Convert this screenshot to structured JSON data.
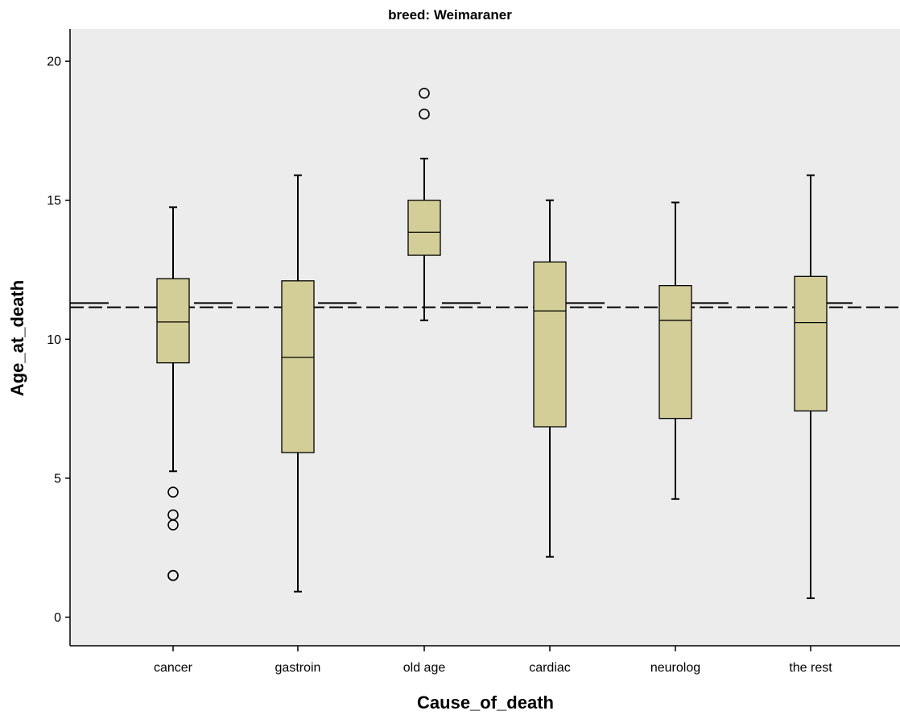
{
  "chart_data": {
    "type": "boxplot",
    "title": "breed: Weimaraner",
    "xlabel": "Cause_of_death",
    "ylabel": "Age_at_death",
    "ylim": [
      -1.0,
      21.0
    ],
    "yticks": [
      0,
      5,
      10,
      15,
      20
    ],
    "categories": [
      "cancer",
      "gastroin",
      "old age",
      "cardiac",
      "neurolog",
      "the rest"
    ],
    "boxes": [
      {
        "category": "cancer",
        "whisker_low": 5.25,
        "q1": 9.15,
        "median": 10.62,
        "q3": 12.18,
        "whisker_high": 14.75,
        "outliers": [
          4.5,
          3.68,
          3.32,
          1.5,
          1.5
        ]
      },
      {
        "category": "gastroin",
        "whisker_low": 0.92,
        "q1": 5.92,
        "median": 9.35,
        "q3": 12.1,
        "whisker_high": 15.9,
        "outliers": []
      },
      {
        "category": "old age",
        "whisker_low": 10.68,
        "q1": 13.02,
        "median": 13.85,
        "q3": 15.0,
        "whisker_high": 16.5,
        "outliers": [
          18.85,
          18.1
        ]
      },
      {
        "category": "cardiac",
        "whisker_low": 2.17,
        "q1": 6.85,
        "median": 11.02,
        "q3": 12.78,
        "whisker_high": 15.0,
        "outliers": []
      },
      {
        "category": "neurolog",
        "whisker_low": 4.25,
        "q1": 7.15,
        "median": 10.68,
        "q3": 11.93,
        "whisker_high": 14.92,
        "outliers": []
      },
      {
        "category": "the rest",
        "whisker_low": 0.68,
        "q1": 7.42,
        "median": 10.6,
        "q3": 12.26,
        "whisker_high": 15.9,
        "outliers": []
      }
    ],
    "reference_lines": [
      {
        "style": "long-dash",
        "value": 11.3
      },
      {
        "style": "dashed",
        "value": 11.15
      }
    ],
    "grid": false,
    "colors": {
      "plot_background": "#ececec",
      "box_fill": "#d3ce98",
      "stroke": "#000000"
    }
  }
}
